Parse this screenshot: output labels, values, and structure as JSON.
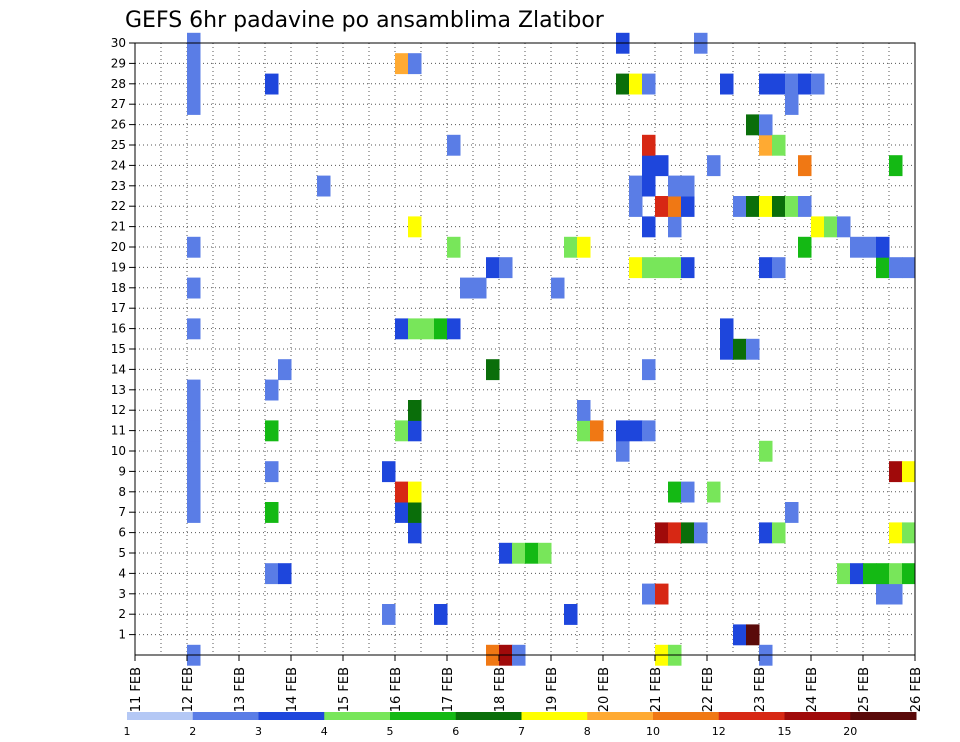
{
  "chart_data": {
    "type": "heatmap",
    "title": "GEFS 6hr padavine po ansamblima Zlatibor",
    "x_ticks": [
      "11 FEB",
      "12 FEB",
      "13 FEB",
      "14 FEB",
      "15 FEB",
      "16 FEB",
      "17 FEB",
      "18 FEB",
      "19 FEB",
      "20 FEB",
      "21 FEB",
      "22 FEB",
      "23 FEB",
      "24 FEB",
      "25 FEB",
      "26 FEB"
    ],
    "y_ticks": [
      1,
      2,
      3,
      4,
      5,
      6,
      7,
      8,
      9,
      10,
      11,
      12,
      13,
      14,
      15,
      16,
      17,
      18,
      19,
      20,
      21,
      22,
      23,
      24,
      25,
      26,
      27,
      28,
      29,
      30
    ],
    "legend_labels": [
      "1",
      "2",
      "3",
      "4",
      "5",
      "6",
      "7",
      "8",
      "10",
      "12",
      "15",
      "20"
    ],
    "legend_colors": [
      "#b4c8f5",
      "#5a7de6",
      "#1e46dc",
      "#78e65a",
      "#14b914",
      "#0a6e0a",
      "#ffff00",
      "#ffaa32",
      "#f07814",
      "#d72814",
      "#a00a0a",
      "#5a0a0a"
    ],
    "xlim": [
      "11 FEB 00Z",
      "26 FEB 00Z"
    ],
    "ylim": [
      0,
      30
    ],
    "cells": [
      [
        "12 FEB 00Z",
        0,
        1
      ],
      [
        "12 FEB 00Z",
        7,
        1
      ],
      [
        "12 FEB 00Z",
        8,
        1
      ],
      [
        "12 FEB 00Z",
        9,
        1
      ],
      [
        "12 FEB 00Z",
        10,
        1
      ],
      [
        "12 FEB 00Z",
        11,
        1
      ],
      [
        "12 FEB 00Z",
        12,
        1
      ],
      [
        "12 FEB 00Z",
        13,
        1
      ],
      [
        "12 FEB 00Z",
        16,
        1
      ],
      [
        "12 FEB 00Z",
        18,
        1
      ],
      [
        "12 FEB 00Z",
        20,
        1
      ],
      [
        "12 FEB 00Z",
        27,
        1
      ],
      [
        "12 FEB 00Z",
        28,
        1
      ],
      [
        "12 FEB 00Z",
        29,
        1
      ],
      [
        "12 FEB 00Z",
        30,
        1
      ],
      [
        "13 FEB 12Z",
        4,
        1
      ],
      [
        "13 FEB 12Z",
        7,
        4
      ],
      [
        "13 FEB 12Z",
        9,
        1
      ],
      [
        "13 FEB 12Z",
        11,
        4
      ],
      [
        "13 FEB 12Z",
        13,
        1
      ],
      [
        "13 FEB 12Z",
        28,
        2
      ],
      [
        "13 FEB 18Z",
        4,
        2
      ],
      [
        "13 FEB 18Z",
        14,
        1
      ],
      [
        "14 FEB 12Z",
        23,
        1
      ],
      [
        "15 FEB 18Z",
        2,
        1
      ],
      [
        "15 FEB 18Z",
        9,
        2
      ],
      [
        "16 FEB 00Z",
        7,
        2
      ],
      [
        "16 FEB 00Z",
        8,
        9
      ],
      [
        "16 FEB 00Z",
        11,
        3
      ],
      [
        "16 FEB 00Z",
        16,
        2
      ],
      [
        "16 FEB 00Z",
        29,
        7
      ],
      [
        "16 FEB 06Z",
        6,
        2
      ],
      [
        "16 FEB 06Z",
        7,
        5
      ],
      [
        "16 FEB 06Z",
        8,
        6
      ],
      [
        "16 FEB 06Z",
        11,
        2
      ],
      [
        "16 FEB 06Z",
        12,
        5
      ],
      [
        "16 FEB 06Z",
        16,
        3
      ],
      [
        "16 FEB 06Z",
        21,
        6
      ],
      [
        "16 FEB 06Z",
        29,
        1
      ],
      [
        "16 FEB 12Z",
        16,
        3
      ],
      [
        "16 FEB 18Z",
        2,
        2
      ],
      [
        "16 FEB 18Z",
        16,
        4
      ],
      [
        "17 FEB 00Z",
        16,
        2
      ],
      [
        "17 FEB 00Z",
        20,
        3
      ],
      [
        "17 FEB 00Z",
        25,
        1
      ],
      [
        "17 FEB 06Z",
        18,
        1
      ],
      [
        "17 FEB 12Z",
        18,
        1
      ],
      [
        "17 FEB 18Z",
        14,
        5
      ],
      [
        "17 FEB 18Z",
        0,
        8
      ],
      [
        "17 FEB 18Z",
        19,
        2
      ],
      [
        "18 FEB 00Z",
        5,
        2
      ],
      [
        "18 FEB 00Z",
        0,
        10
      ],
      [
        "18 FEB 00Z",
        19,
        1
      ],
      [
        "18 FEB 06Z",
        5,
        3
      ],
      [
        "18 FEB 06Z",
        0,
        1
      ],
      [
        "18 FEB 12Z",
        5,
        4
      ],
      [
        "18 FEB 18Z",
        5,
        3
      ],
      [
        "19 FEB 00Z",
        18,
        1
      ],
      [
        "19 FEB 06Z",
        2,
        2
      ],
      [
        "19 FEB 06Z",
        20,
        3
      ],
      [
        "19 FEB 12Z",
        11,
        3
      ],
      [
        "19 FEB 12Z",
        12,
        1
      ],
      [
        "19 FEB 12Z",
        20,
        6
      ],
      [
        "19 FEB 18Z",
        11,
        8
      ],
      [
        "20 FEB 06Z",
        10,
        1
      ],
      [
        "20 FEB 06Z",
        11,
        2
      ],
      [
        "20 FEB 06Z",
        28,
        5
      ],
      [
        "20 FEB 06Z",
        30,
        2
      ],
      [
        "20 FEB 12Z",
        11,
        2
      ],
      [
        "20 FEB 12Z",
        19,
        6
      ],
      [
        "20 FEB 12Z",
        23,
        1
      ],
      [
        "20 FEB 12Z",
        22,
        1
      ],
      [
        "20 FEB 12Z",
        28,
        6
      ],
      [
        "20 FEB 18Z",
        3,
        1
      ],
      [
        "20 FEB 18Z",
        11,
        1
      ],
      [
        "20 FEB 18Z",
        14,
        1
      ],
      [
        "20 FEB 18Z",
        19,
        3
      ],
      [
        "20 FEB 18Z",
        21,
        2
      ],
      [
        "20 FEB 18Z",
        23,
        2
      ],
      [
        "20 FEB 18Z",
        24,
        2
      ],
      [
        "20 FEB 18Z",
        25,
        9
      ],
      [
        "20 FEB 18Z",
        28,
        1
      ],
      [
        "21 FEB 00Z",
        0,
        6
      ],
      [
        "21 FEB 00Z",
        3,
        9
      ],
      [
        "21 FEB 00Z",
        6,
        10
      ],
      [
        "21 FEB 00Z",
        19,
        3
      ],
      [
        "21 FEB 00Z",
        22,
        9
      ],
      [
        "21 FEB 00Z",
        24,
        2
      ],
      [
        "21 FEB 06Z",
        0,
        3
      ],
      [
        "21 FEB 06Z",
        6,
        9
      ],
      [
        "21 FEB 06Z",
        8,
        4
      ],
      [
        "21 FEB 06Z",
        19,
        3
      ],
      [
        "21 FEB 06Z",
        21,
        1
      ],
      [
        "21 FEB 06Z",
        22,
        8
      ],
      [
        "21 FEB 06Z",
        23,
        1
      ],
      [
        "21 FEB 12Z",
        6,
        5
      ],
      [
        "21 FEB 12Z",
        8,
        1
      ],
      [
        "21 FEB 12Z",
        19,
        2
      ],
      [
        "21 FEB 12Z",
        22,
        2
      ],
      [
        "21 FEB 12Z",
        23,
        1
      ],
      [
        "21 FEB 18Z",
        6,
        1
      ],
      [
        "21 FEB 18Z",
        30,
        1
      ],
      [
        "22 FEB 00Z",
        8,
        3
      ],
      [
        "22 FEB 00Z",
        24,
        1
      ],
      [
        "22 FEB 06Z",
        15,
        2
      ],
      [
        "22 FEB 06Z",
        16,
        2
      ],
      [
        "22 FEB 06Z",
        28,
        2
      ],
      [
        "22 FEB 12Z",
        1,
        2
      ],
      [
        "22 FEB 12Z",
        15,
        5
      ],
      [
        "22 FEB 12Z",
        22,
        1
      ],
      [
        "22 FEB 18Z",
        1,
        11
      ],
      [
        "22 FEB 18Z",
        15,
        1
      ],
      [
        "22 FEB 18Z",
        22,
        5
      ],
      [
        "22 FEB 18Z",
        26,
        5
      ],
      [
        "23 FEB 00Z",
        0,
        1
      ],
      [
        "23 FEB 00Z",
        6,
        2
      ],
      [
        "23 FEB 00Z",
        10,
        3
      ],
      [
        "23 FEB 00Z",
        19,
        2
      ],
      [
        "23 FEB 00Z",
        22,
        6
      ],
      [
        "23 FEB 00Z",
        25,
        7
      ],
      [
        "23 FEB 00Z",
        26,
        1
      ],
      [
        "23 FEB 00Z",
        28,
        2
      ],
      [
        "23 FEB 06Z",
        6,
        3
      ],
      [
        "23 FEB 06Z",
        19,
        1
      ],
      [
        "23 FEB 06Z",
        22,
        5
      ],
      [
        "23 FEB 06Z",
        25,
        3
      ],
      [
        "23 FEB 06Z",
        28,
        2
      ],
      [
        "23 FEB 12Z",
        7,
        1
      ],
      [
        "23 FEB 12Z",
        22,
        3
      ],
      [
        "23 FEB 12Z",
        27,
        1
      ],
      [
        "23 FEB 12Z",
        28,
        1
      ],
      [
        "23 FEB 18Z",
        20,
        4
      ],
      [
        "23 FEB 18Z",
        22,
        1
      ],
      [
        "23 FEB 18Z",
        24,
        8
      ],
      [
        "23 FEB 18Z",
        28,
        2
      ],
      [
        "24 FEB 00Z",
        21,
        6
      ],
      [
        "24 FEB 00Z",
        28,
        1
      ],
      [
        "24 FEB 06Z",
        21,
        3
      ],
      [
        "24 FEB 12Z",
        4,
        3
      ],
      [
        "24 FEB 12Z",
        21,
        1
      ],
      [
        "24 FEB 18Z",
        4,
        2
      ],
      [
        "24 FEB 18Z",
        20,
        1
      ],
      [
        "25 FEB 00Z",
        4,
        4
      ],
      [
        "25 FEB 00Z",
        20,
        1
      ],
      [
        "25 FEB 06Z",
        3,
        1
      ],
      [
        "25 FEB 06Z",
        4,
        4
      ],
      [
        "25 FEB 06Z",
        19,
        4
      ],
      [
        "25 FEB 06Z",
        20,
        2
      ],
      [
        "25 FEB 12Z",
        3,
        1
      ],
      [
        "25 FEB 12Z",
        4,
        3
      ],
      [
        "25 FEB 12Z",
        6,
        6
      ],
      [
        "25 FEB 12Z",
        9,
        10
      ],
      [
        "25 FEB 12Z",
        24,
        4
      ],
      [
        "25 FEB 12Z",
        19,
        1
      ],
      [
        "25 FEB 18Z",
        4,
        4
      ],
      [
        "25 FEB 18Z",
        6,
        3
      ],
      [
        "25 FEB 18Z",
        9,
        6
      ],
      [
        "25 FEB 18Z",
        19,
        1
      ]
    ]
  }
}
